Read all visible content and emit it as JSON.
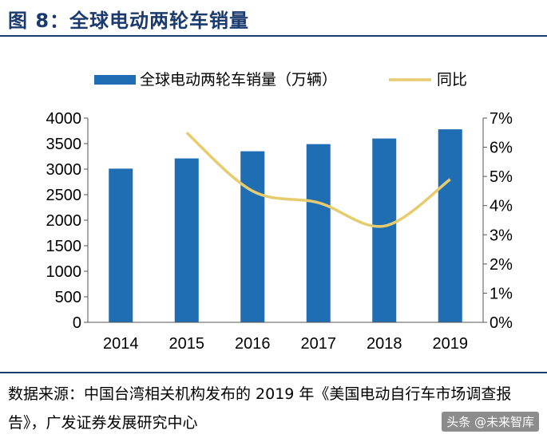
{
  "figure": {
    "title": "图 8：全球电动两轮车销量",
    "source": "数据来源：中国台湾相关机构发布的 2019 年《美国电动自行车市场调查报告》，广发证券发展研究中心",
    "watermark": "头条 @未来智库"
  },
  "chart_data": {
    "type": "bar",
    "categories": [
      "2014",
      "2015",
      "2016",
      "2017",
      "2018",
      "2019"
    ],
    "series": [
      {
        "name": "全球电动两轮车销量（万辆）",
        "type": "bar",
        "axis": "left",
        "color": "#1f6db3",
        "values": [
          3010,
          3210,
          3350,
          3490,
          3600,
          3780
        ]
      },
      {
        "name": "同比",
        "type": "line",
        "axis": "right",
        "color": "#e6cc6e",
        "values": [
          null,
          6.5,
          4.5,
          4.1,
          3.3,
          4.9
        ]
      }
    ],
    "y_left": {
      "min": 0,
      "max": 4000,
      "step": 500
    },
    "y_right": {
      "min": 0,
      "max": 7,
      "step": 1,
      "unit": "%"
    },
    "legend_position": "top",
    "grid": false
  }
}
